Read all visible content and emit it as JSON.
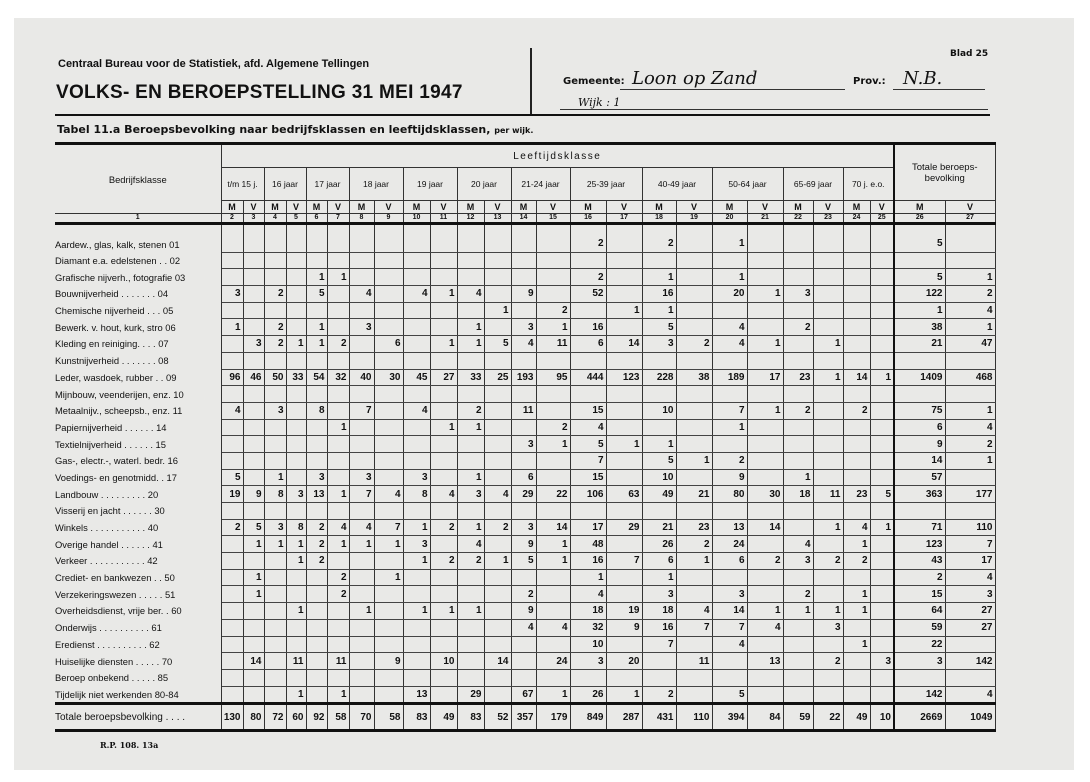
{
  "header": {
    "organization": "Centraal Bureau voor de Statistiek, afd. Algemene Tellingen",
    "title": "VOLKS- EN BEROEPSTELLING 31 MEI 1947",
    "sheet": "Blad 25",
    "municipality_label": "Gemeente:",
    "municipality": "Loon op Zand",
    "province_label": "Prov.:",
    "province": "N.B.",
    "district": "Wijk : 1"
  },
  "table_title": "Tabel 11.a Beroepsbevolking naar bedrijfsklassen en leeftijdsklassen,",
  "table_title_suffix": "per wijk.",
  "columns": {
    "industry_header": "Bedrijfsklasse",
    "age_header": "Leeftijdsklasse",
    "total_header": "Totale beroeps-bevolking",
    "age_groups": [
      "t/m 15 j.",
      "16 jaar",
      "17 jaar",
      "18 jaar",
      "19 jaar",
      "20 jaar",
      "21-24 jaar",
      "25-39 jaar",
      "40-49 jaar",
      "50-64 jaar",
      "65-69 jaar",
      "70 j. e.o."
    ],
    "m": "M",
    "v": "V",
    "numbers": [
      "1",
      "2",
      "3",
      "4",
      "5",
      "6",
      "7",
      "8",
      "9",
      "10",
      "11",
      "12",
      "13",
      "14",
      "15",
      "16",
      "17",
      "18",
      "19",
      "20",
      "21",
      "22",
      "23",
      "24",
      "25",
      "26",
      "27"
    ]
  },
  "rows": [
    {
      "label": "Aardew., glas, kalk, stenen 01",
      "values": [
        "",
        "",
        "",
        "",
        "",
        "",
        "",
        "",
        "",
        "",
        "",
        "",
        "",
        "",
        "2",
        "",
        "2",
        "",
        "1",
        "",
        "",
        "",
        "",
        "",
        "5",
        ""
      ]
    },
    {
      "label": "Diamant e.a. edelstenen . . 02",
      "values": [
        "",
        "",
        "",
        "",
        "",
        "",
        "",
        "",
        "",
        "",
        "",
        "",
        "",
        "",
        "",
        "",
        "",
        "",
        "",
        "",
        "",
        "",
        "",
        "",
        "",
        ""
      ]
    },
    {
      "label": "Grafische nijverh., fotografie 03",
      "values": [
        "",
        "",
        "",
        "",
        "1",
        "1",
        "",
        "",
        "",
        "",
        "",
        "",
        "",
        "",
        "2",
        "",
        "1",
        "",
        "1",
        "",
        "",
        "",
        "",
        "",
        "5",
        "1"
      ]
    },
    {
      "label": "Bouwnijverheid . . . . . . . 04",
      "values": [
        "3",
        "",
        "2",
        "",
        "5",
        "",
        "4",
        "",
        "4",
        "1",
        "4",
        "",
        "9",
        "",
        "52",
        "",
        "16",
        "",
        "20",
        "1",
        "3",
        "",
        "",
        "",
        "122",
        "2"
      ]
    },
    {
      "label": "Chemische nijverheid . . . 05",
      "values": [
        "",
        "",
        "",
        "",
        "",
        "",
        "",
        "",
        "",
        "",
        "",
        "1",
        "",
        "2",
        "",
        "1",
        "1",
        "",
        "",
        "",
        "",
        "",
        "",
        "",
        "1",
        "4"
      ]
    },
    {
      "label": "Bewerk. v. hout, kurk, stro 06",
      "values": [
        "1",
        "",
        "2",
        "",
        "1",
        "",
        "3",
        "",
        "",
        "",
        "1",
        "",
        "3",
        "1",
        "16",
        "",
        "5",
        "",
        "4",
        "",
        "2",
        "",
        "",
        "",
        "38",
        "1"
      ]
    },
    {
      "label": "Kleding en reiniging. . . . 07",
      "values": [
        "",
        "3",
        "2",
        "1",
        "1",
        "2",
        "",
        "6",
        "",
        "1",
        "1",
        "5",
        "4",
        "11",
        "6",
        "14",
        "3",
        "2",
        "4",
        "1",
        "",
        "1",
        "",
        "",
        "21",
        "47"
      ]
    },
    {
      "label": "Kunstnijverheid . . . . . . . 08",
      "values": [
        "",
        "",
        "",
        "",
        "",
        "",
        "",
        "",
        "",
        "",
        "",
        "",
        "",
        "",
        "",
        "",
        "",
        "",
        "",
        "",
        "",
        "",
        "",
        "",
        "",
        ""
      ]
    },
    {
      "label": "Leder, wasdoek, rubber . . 09",
      "values": [
        "96",
        "46",
        "50",
        "33",
        "54",
        "32",
        "40",
        "30",
        "45",
        "27",
        "33",
        "25",
        "193",
        "95",
        "444",
        "123",
        "228",
        "38",
        "189",
        "17",
        "23",
        "1",
        "14",
        "1",
        "1409",
        "468"
      ]
    },
    {
      "label": "Mijnbouw, veenderijen, enz. 10",
      "values": [
        "",
        "",
        "",
        "",
        "",
        "",
        "",
        "",
        "",
        "",
        "",
        "",
        "",
        "",
        "",
        "",
        "",
        "",
        "",
        "",
        "",
        "",
        "",
        "",
        "",
        ""
      ]
    },
    {
      "label": "Metaalnijv., scheepsb., enz. 11",
      "values": [
        "4",
        "",
        "3",
        "",
        "8",
        "",
        "7",
        "",
        "4",
        "",
        "2",
        "",
        "11",
        "",
        "15",
        "",
        "10",
        "",
        "7",
        "1",
        "2",
        "",
        "2",
        "",
        "75",
        "1"
      ]
    },
    {
      "label": "Papiernijverheid . . . . . . 14",
      "values": [
        "",
        "",
        "",
        "",
        "",
        "1",
        "",
        "",
        "",
        "1",
        "1",
        "",
        "",
        "2",
        "4",
        "",
        "",
        "",
        "1",
        "",
        "",
        "",
        "",
        "",
        "6",
        "4"
      ]
    },
    {
      "label": "Textielnijverheid . . . . . . 15",
      "values": [
        "",
        "",
        "",
        "",
        "",
        "",
        "",
        "",
        "",
        "",
        "",
        "",
        "3",
        "1",
        "5",
        "1",
        "1",
        "",
        "",
        "",
        "",
        "",
        "",
        "",
        "9",
        "2"
      ]
    },
    {
      "label": "Gas-, electr.-, waterl. bedr. 16",
      "values": [
        "",
        "",
        "",
        "",
        "",
        "",
        "",
        "",
        "",
        "",
        "",
        "",
        "",
        "",
        "7",
        "",
        "5",
        "1",
        "2",
        "",
        "",
        "",
        "",
        "",
        "14",
        "1"
      ]
    },
    {
      "label": "Voedings- en genotmidd. . 17",
      "values": [
        "5",
        "",
        "1",
        "",
        "3",
        "",
        "3",
        "",
        "3",
        "",
        "1",
        "",
        "6",
        "",
        "15",
        "",
        "10",
        "",
        "9",
        "",
        "1",
        "",
        "",
        "",
        "57",
        ""
      ]
    },
    {
      "label": "Landbouw . . . . . . . . . 20",
      "values": [
        "19",
        "9",
        "8",
        "3",
        "13",
        "1",
        "7",
        "4",
        "8",
        "4",
        "3",
        "4",
        "29",
        "22",
        "106",
        "63",
        "49",
        "21",
        "80",
        "30",
        "18",
        "11",
        "23",
        "5",
        "363",
        "177"
      ]
    },
    {
      "label": "Visserij en jacht . . . . . . 30",
      "values": [
        "",
        "",
        "",
        "",
        "",
        "",
        "",
        "",
        "",
        "",
        "",
        "",
        "",
        "",
        "",
        "",
        "",
        "",
        "",
        "",
        "",
        "",
        "",
        "",
        "",
        ""
      ]
    },
    {
      "label": "Winkels . . . . . . . . . . . 40",
      "values": [
        "2",
        "5",
        "3",
        "8",
        "2",
        "4",
        "4",
        "7",
        "1",
        "2",
        "1",
        "2",
        "3",
        "14",
        "17",
        "29",
        "21",
        "23",
        "13",
        "14",
        "",
        "1",
        "4",
        "1",
        "71",
        "110"
      ]
    },
    {
      "label": "Overige handel . . . . . . 41",
      "values": [
        "",
        "1",
        "1",
        "1",
        "2",
        "1",
        "1",
        "1",
        "3",
        "",
        "4",
        "",
        "9",
        "1",
        "48",
        "",
        "26",
        "2",
        "24",
        "",
        "4",
        "",
        "1",
        "",
        "123",
        "7"
      ]
    },
    {
      "label": "Verkeer . . . . . . . . . . . 42",
      "values": [
        "",
        "",
        "",
        "1",
        "2",
        "",
        "",
        "",
        "1",
        "2",
        "2",
        "1",
        "5",
        "1",
        "16",
        "7",
        "6",
        "1",
        "6",
        "2",
        "3",
        "2",
        "2",
        "",
        "43",
        "17"
      ]
    },
    {
      "label": "Crediet- en bankwezen . . 50",
      "values": [
        "",
        "1",
        "",
        "",
        "",
        "2",
        "",
        "1",
        "",
        "",
        "",
        "",
        "",
        "",
        "1",
        "",
        "1",
        "",
        "",
        "",
        "",
        "",
        "",
        "",
        "2",
        "4"
      ]
    },
    {
      "label": "Verzekeringswezen . . . . . 51",
      "values": [
        "",
        "1",
        "",
        "",
        "",
        "2",
        "",
        "",
        "",
        "",
        "",
        "",
        "2",
        "",
        "4",
        "",
        "3",
        "",
        "3",
        "",
        "2",
        "",
        "1",
        "",
        "15",
        "3"
      ]
    },
    {
      "label": "Overheidsdienst, vrije ber. . 60",
      "values": [
        "",
        "",
        "",
        "1",
        "",
        "",
        "1",
        "",
        "1",
        "1",
        "1",
        "",
        "9",
        "",
        "18",
        "19",
        "18",
        "4",
        "14",
        "1",
        "1",
        "1",
        "1",
        "",
        "64",
        "27"
      ]
    },
    {
      "label": "Onderwijs . . . . . . . . . . 61",
      "values": [
        "",
        "",
        "",
        "",
        "",
        "",
        "",
        "",
        "",
        "",
        "",
        "",
        "4",
        "4",
        "32",
        "9",
        "16",
        "7",
        "7",
        "4",
        "",
        "3",
        "",
        "",
        "59",
        "27"
      ]
    },
    {
      "label": "Eredienst . . . . . . . . . . 62",
      "values": [
        "",
        "",
        "",
        "",
        "",
        "",
        "",
        "",
        "",
        "",
        "",
        "",
        "",
        "",
        "10",
        "",
        "7",
        "",
        "4",
        "",
        "",
        "",
        "1",
        "",
        "22",
        ""
      ]
    },
    {
      "label": "Huiselijke diensten . . . . . 70",
      "values": [
        "",
        "14",
        "",
        "11",
        "",
        "11",
        "",
        "9",
        "",
        "10",
        "",
        "14",
        "",
        "24",
        "3",
        "20",
        "",
        "11",
        "",
        "13",
        "",
        "2",
        "",
        "3",
        "3",
        "142"
      ]
    },
    {
      "label": "Beroep onbekend . . . . . 85",
      "values": [
        "",
        "",
        "",
        "",
        "",
        "",
        "",
        "",
        "",
        "",
        "",
        "",
        "",
        "",
        "",
        "",
        "",
        "",
        "",
        "",
        "",
        "",
        "",
        "",
        "",
        ""
      ]
    },
    {
      "label": "Tijdelijk niet werkenden 80-84",
      "values": [
        "",
        "",
        "",
        "1",
        "",
        "1",
        "",
        "",
        "13",
        "",
        "29",
        "",
        "67",
        "1",
        "26",
        "1",
        "2",
        "",
        "5",
        "",
        "",
        "",
        "",
        "",
        "142",
        "4"
      ]
    }
  ],
  "totals": {
    "label": "Totale beroepsbevolking . . . .",
    "values": [
      "130",
      "80",
      "72",
      "60",
      "92",
      "58",
      "70",
      "58",
      "83",
      "49",
      "83",
      "52",
      "357",
      "179",
      "849",
      "287",
      "431",
      "110",
      "394",
      "84",
      "59",
      "22",
      "49",
      "10",
      "2669",
      "1049"
    ]
  },
  "footer": "R.P. 108. 13a"
}
